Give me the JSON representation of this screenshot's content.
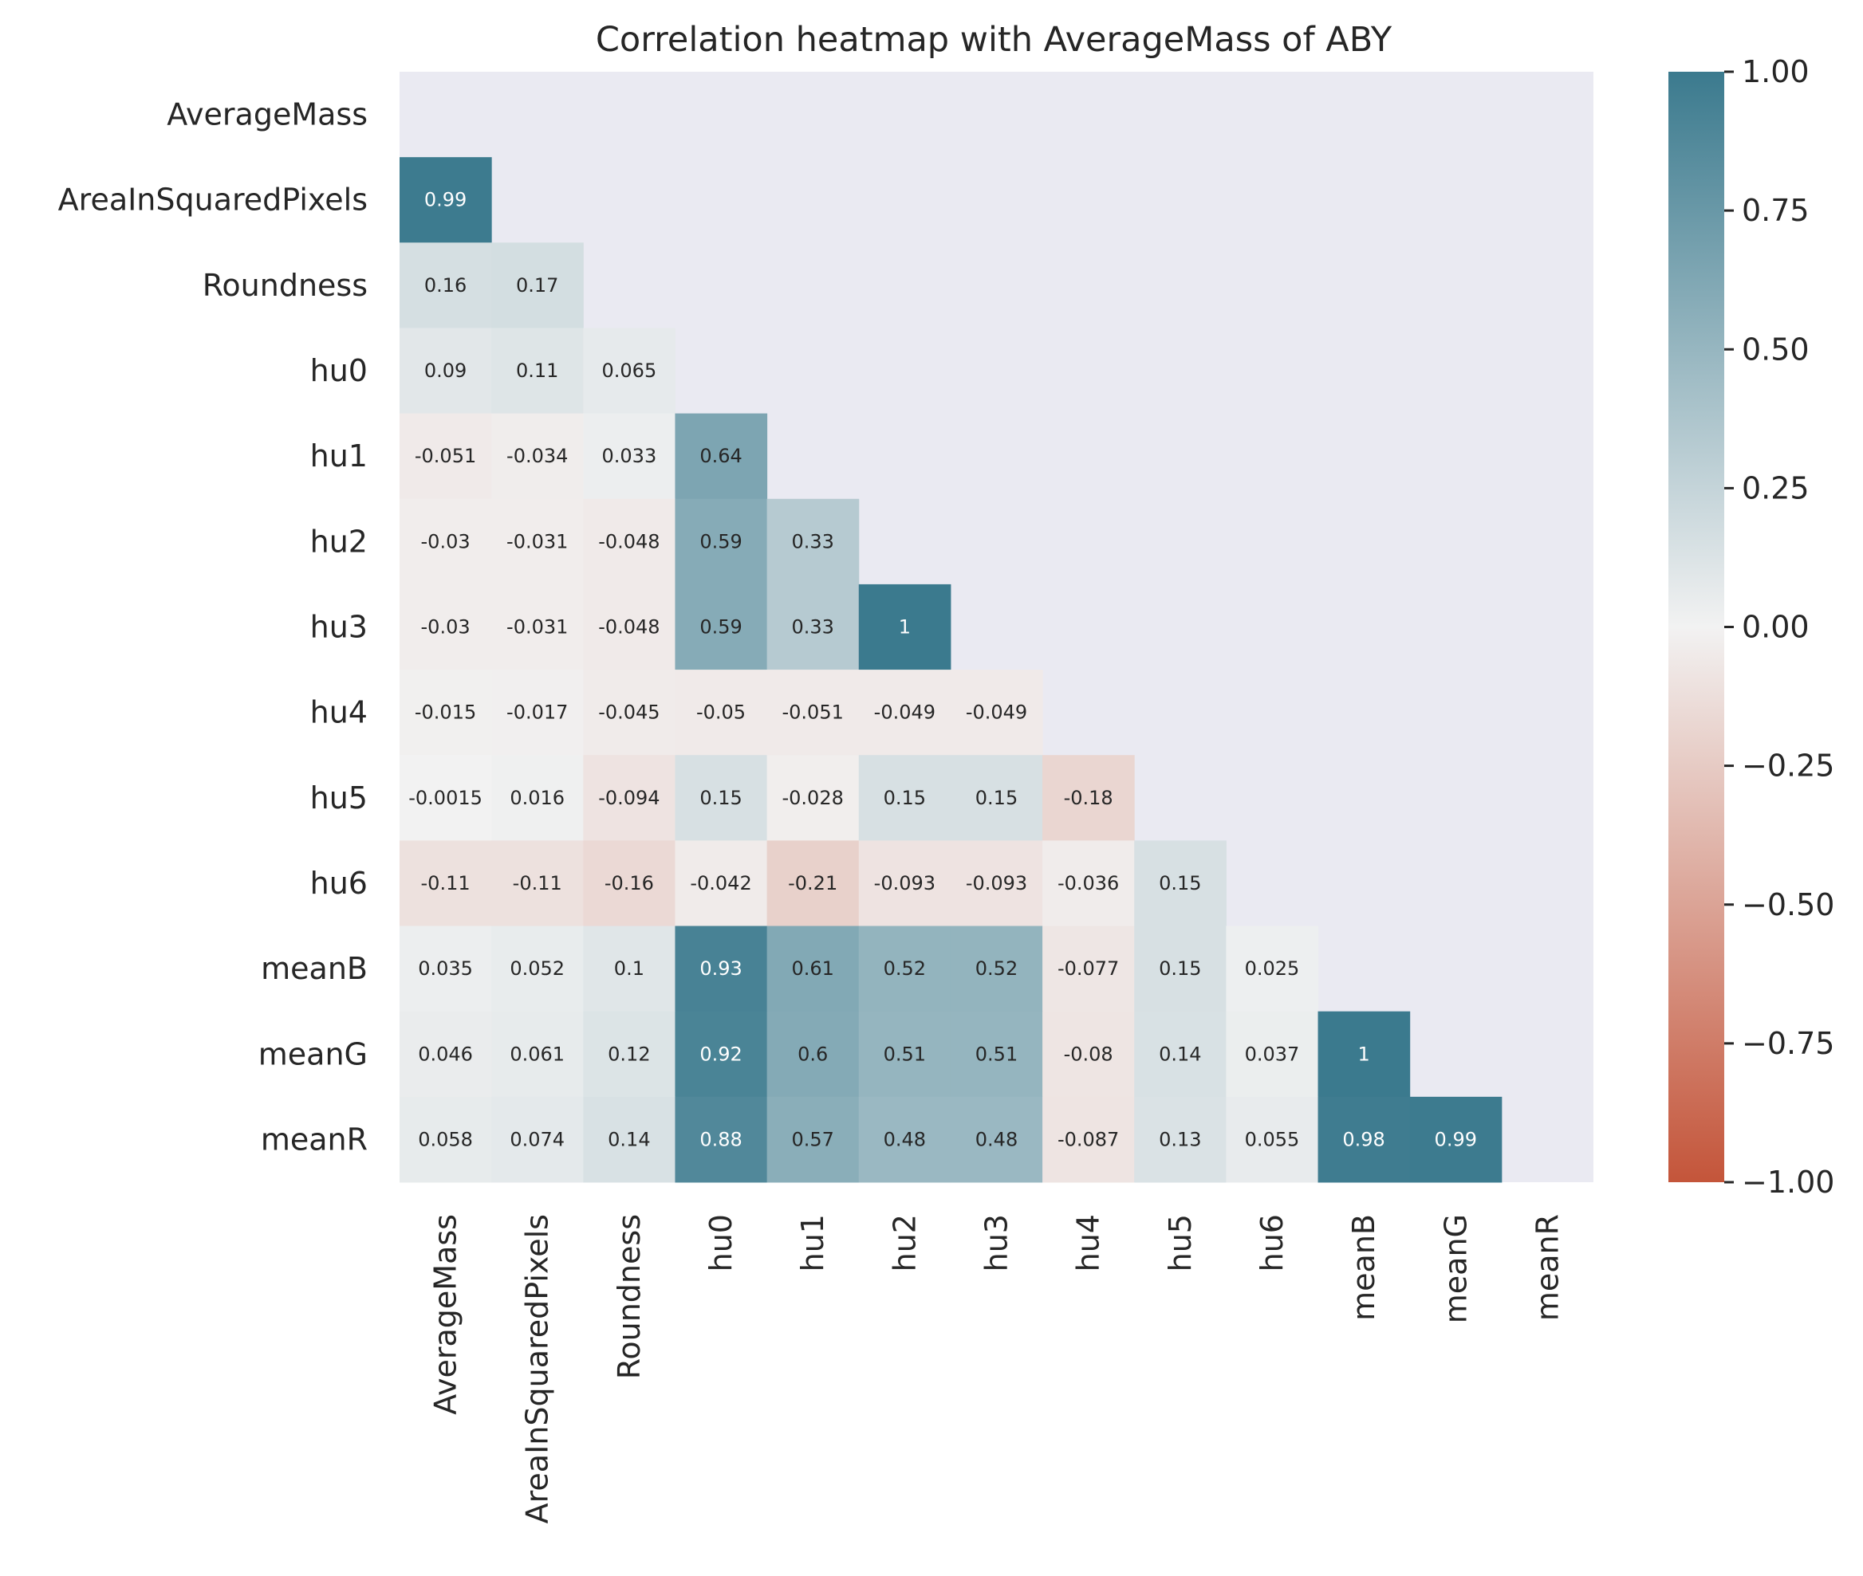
{
  "chart_data": {
    "type": "heatmap",
    "title": "Correlation heatmap with AverageMass of ABY",
    "variables": [
      "AverageMass",
      "AreaInSquaredPixels",
      "Roundness",
      "hu0",
      "hu1",
      "hu2",
      "hu3",
      "hu4",
      "hu5",
      "hu6",
      "meanB",
      "meanG",
      "meanR"
    ],
    "mask": "upper-triangle-including-diagonal",
    "lower_triangle": [
      [],
      [
        "0.99"
      ],
      [
        "0.16",
        "0.17"
      ],
      [
        "0.09",
        "0.11",
        "0.065"
      ],
      [
        "-0.051",
        "-0.034",
        "0.033",
        "0.64"
      ],
      [
        "-0.03",
        "-0.031",
        "-0.048",
        "0.59",
        "0.33"
      ],
      [
        "-0.03",
        "-0.031",
        "-0.048",
        "0.59",
        "0.33",
        "1"
      ],
      [
        "-0.015",
        "-0.017",
        "-0.045",
        "-0.05",
        "-0.051",
        "-0.049",
        "-0.049"
      ],
      [
        "-0.0015",
        "0.016",
        "-0.094",
        "0.15",
        "-0.028",
        "0.15",
        "0.15",
        "-0.18"
      ],
      [
        "-0.11",
        "-0.11",
        "-0.16",
        "-0.042",
        "-0.21",
        "-0.093",
        "-0.093",
        "-0.036",
        "0.15"
      ],
      [
        "0.035",
        "0.052",
        "0.1",
        "0.93",
        "0.61",
        "0.52",
        "0.52",
        "-0.077",
        "0.15",
        "0.025"
      ],
      [
        "0.046",
        "0.061",
        "0.12",
        "0.92",
        "0.6",
        "0.51",
        "0.51",
        "-0.08",
        "0.14",
        "0.037",
        "1"
      ],
      [
        "0.058",
        "0.074",
        "0.14",
        "0.88",
        "0.57",
        "0.48",
        "0.48",
        "-0.087",
        "0.13",
        "0.055",
        "0.98",
        "0.99"
      ]
    ],
    "colorbar": {
      "vmin": -1.0,
      "vmax": 1.0,
      "ticks": [
        "1.00",
        "0.75",
        "0.50",
        "0.25",
        "0.00",
        "−0.25",
        "−0.50",
        "−0.75",
        "−1.00"
      ],
      "tick_values": [
        1.0,
        0.75,
        0.5,
        0.25,
        0.0,
        -0.25,
        -0.5,
        -0.75,
        -1.0
      ],
      "color_low": "#c4553a",
      "color_mid": "#f2f2f2",
      "color_high": "#3b7a8e"
    },
    "background_color": "#eaeaf2",
    "grid": false
  }
}
